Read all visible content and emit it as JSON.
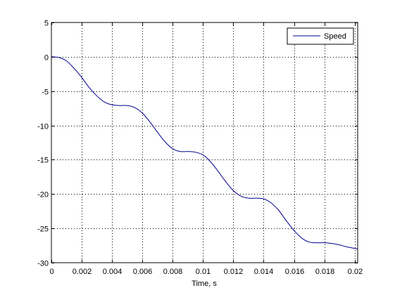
{
  "chart_data": {
    "type": "line",
    "title": "",
    "xlabel": "Time, s",
    "ylabel": "",
    "xlim": [
      0,
      0.0202
    ],
    "ylim": [
      -30,
      5
    ],
    "xticks": [
      0,
      0.002,
      0.004,
      0.006,
      0.008,
      0.01,
      0.012,
      0.014,
      0.016,
      0.018,
      0.02
    ],
    "xtick_labels": [
      "0",
      "0.002",
      "0.004",
      "0.006",
      "0.008",
      "0.01",
      "0.012",
      "0.014",
      "0.016",
      "0.018",
      "0.02"
    ],
    "yticks": [
      -30,
      -25,
      -20,
      -15,
      -10,
      -5,
      0,
      5
    ],
    "ytick_labels": [
      "-30",
      "-25",
      "-20",
      "-15",
      "-10",
      "-5",
      "0",
      "5"
    ],
    "grid": true,
    "legend_position": "top-right",
    "series": [
      {
        "name": "Speed",
        "color": "#00008b",
        "x": [
          0,
          0.0005,
          0.001,
          0.0015,
          0.002,
          0.0025,
          0.003,
          0.0035,
          0.004,
          0.0045,
          0.005,
          0.0055,
          0.006,
          0.0065,
          0.007,
          0.0075,
          0.008,
          0.0085,
          0.009,
          0.0095,
          0.01,
          0.0105,
          0.011,
          0.0115,
          0.012,
          0.0125,
          0.013,
          0.0135,
          0.014,
          0.0145,
          0.015,
          0.0155,
          0.016,
          0.0165,
          0.017,
          0.0175,
          0.018,
          0.0185,
          0.019,
          0.0195,
          0.0202
        ],
        "y": [
          0,
          -0.1,
          -0.6,
          -1.7,
          -3.0,
          -4.5,
          -5.7,
          -6.6,
          -7.0,
          -7.1,
          -7.1,
          -7.4,
          -8.2,
          -9.5,
          -11.0,
          -12.4,
          -13.4,
          -13.8,
          -13.8,
          -13.9,
          -14.3,
          -15.3,
          -16.7,
          -18.2,
          -19.5,
          -20.3,
          -20.6,
          -20.6,
          -20.7,
          -21.3,
          -22.4,
          -23.9,
          -25.3,
          -26.4,
          -27.0,
          -27.1,
          -27.1,
          -27.2,
          -27.4,
          -27.7,
          -28.0
        ]
      }
    ]
  }
}
